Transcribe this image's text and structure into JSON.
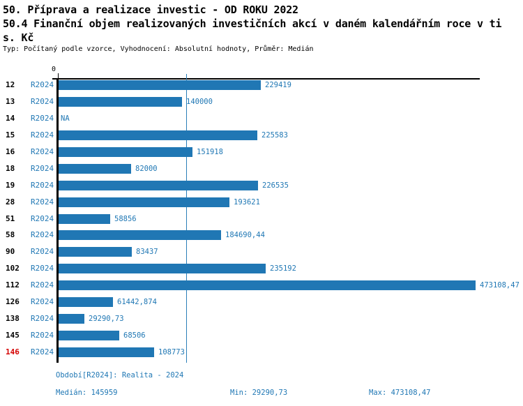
{
  "header": {
    "title_line1": "50. Příprava a realizace investic - OD ROKU 2022",
    "title_line2": "50.4 Finanční objem realizovaných investičních akcí v daném kalendářním roce v ti",
    "title_line3": "s. Kč",
    "subtitle": "Typ: Počítaný podle vzorce, Vyhodnocení: Absolutní hodnoty, Průměr: Medián"
  },
  "chart_data": {
    "type": "bar",
    "orientation": "horizontal",
    "title": "50.4 Finanční objem realizovaných investičních akcí v daném kalendářním roce v tis. Kč",
    "x_axis": {
      "zero_label": "0",
      "min": 0,
      "max": 473108.47,
      "gridlines": false
    },
    "categories": [
      "12",
      "13",
      "14",
      "15",
      "16",
      "18",
      "19",
      "28",
      "51",
      "58",
      "90",
      "102",
      "112",
      "126",
      "138",
      "145",
      "146"
    ],
    "series_period": "R2024",
    "rows": [
      {
        "id": "12",
        "period": "R2024",
        "value": 229419,
        "display": "229419",
        "highlight": false
      },
      {
        "id": "13",
        "period": "R2024",
        "value": 140000,
        "display": "140000",
        "highlight": false
      },
      {
        "id": "14",
        "period": "R2024",
        "value": null,
        "display": "NA",
        "highlight": false
      },
      {
        "id": "15",
        "period": "R2024",
        "value": 225583,
        "display": "225583",
        "highlight": false
      },
      {
        "id": "16",
        "period": "R2024",
        "value": 151918,
        "display": "151918",
        "highlight": false
      },
      {
        "id": "18",
        "period": "R2024",
        "value": 82000,
        "display": "82000",
        "highlight": false
      },
      {
        "id": "19",
        "period": "R2024",
        "value": 226535,
        "display": "226535",
        "highlight": false
      },
      {
        "id": "28",
        "period": "R2024",
        "value": 193621,
        "display": "193621",
        "highlight": false
      },
      {
        "id": "51",
        "period": "R2024",
        "value": 58856,
        "display": "58856",
        "highlight": false
      },
      {
        "id": "58",
        "period": "R2024",
        "value": 184690.44,
        "display": "184690,44",
        "highlight": false
      },
      {
        "id": "90",
        "period": "R2024",
        "value": 83437,
        "display": "83437",
        "highlight": false
      },
      {
        "id": "102",
        "period": "R2024",
        "value": 235192,
        "display": "235192",
        "highlight": false
      },
      {
        "id": "112",
        "period": "R2024",
        "value": 473108.47,
        "display": "473108,47",
        "highlight": false
      },
      {
        "id": "126",
        "period": "R2024",
        "value": 61442.874,
        "display": "61442,874",
        "highlight": false
      },
      {
        "id": "138",
        "period": "R2024",
        "value": 29290.73,
        "display": "29290,73",
        "highlight": false
      },
      {
        "id": "145",
        "period": "R2024",
        "value": 68506,
        "display": "68506",
        "highlight": false
      },
      {
        "id": "146",
        "period": "R2024",
        "value": 108773,
        "display": "108773",
        "highlight": true
      }
    ],
    "median_value": 145959,
    "min_value": 29290.73,
    "max_value": 473108.47,
    "colors": {
      "bar": "#2077b4",
      "median_line": "#2b7fb8",
      "blue_text": "#1f77b4",
      "highlight_text": "#d40000",
      "axis": "#000000"
    }
  },
  "footer": {
    "period_info": "Období[R2024]: Realita - 2024",
    "median_label": "Medián: 145959",
    "min_label": "Min: 29290,73",
    "max_label": "Max: 473108,47"
  }
}
